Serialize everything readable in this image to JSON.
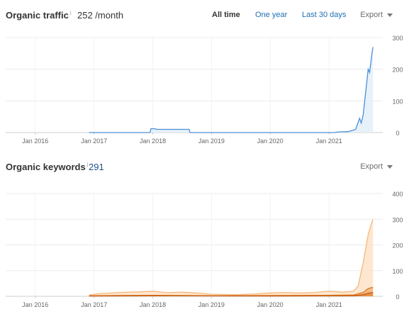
{
  "traffic": {
    "title": "Organic traffic",
    "info_mark": "i",
    "value": "252 /month",
    "ranges": [
      "All time",
      "One year",
      "Last 30 days"
    ],
    "active_range": "All time",
    "export_label": "Export",
    "chart_data": {
      "type": "area",
      "x_ticks": [
        "Jan 2016",
        "Jan 2017",
        "Jan 2018",
        "Jan 2019",
        "Jan 2020",
        "Jan 2021"
      ],
      "y_ticks": [
        0,
        100,
        200,
        300
      ],
      "ylim": [
        0,
        300
      ],
      "grid": true,
      "color": "#4a90d9",
      "fill": "#e3eef9",
      "series": [
        {
          "values": [
            [
              "2016-12-01",
              0
            ],
            [
              "2017-12-15",
              0
            ],
            [
              "2017-12-20",
              12
            ],
            [
              "2018-01-15",
              12
            ],
            [
              "2018-01-25",
              10
            ],
            [
              "2018-08-15",
              10
            ],
            [
              "2018-08-20",
              0
            ],
            [
              "2021-02-01",
              0
            ],
            [
              "2021-03-01",
              2
            ],
            [
              "2021-05-01",
              3
            ],
            [
              "2021-06-15",
              10
            ],
            [
              "2021-07-10",
              45
            ],
            [
              "2021-07-20",
              30
            ],
            [
              "2021-08-01",
              55
            ],
            [
              "2021-08-15",
              120
            ],
            [
              "2021-09-01",
              200
            ],
            [
              "2021-09-10",
              190
            ],
            [
              "2021-09-25",
              250
            ],
            [
              "2021-10-01",
              270
            ]
          ]
        }
      ]
    }
  },
  "keywords": {
    "title": "Organic keywords",
    "info_mark": "i",
    "value": "291",
    "export_label": "Export",
    "chart_data": {
      "type": "area",
      "x_ticks": [
        "Jan 2016",
        "Jan 2017",
        "Jan 2018",
        "Jan 2019",
        "Jan 2020",
        "Jan 2021"
      ],
      "y_ticks": [
        0,
        100,
        200,
        300,
        400
      ],
      "ylim": [
        0,
        400
      ],
      "grid": true,
      "series": [
        {
          "color": "#f5b77a",
          "fill": "#fde3c8",
          "values": [
            [
              "2016-12-01",
              5
            ],
            [
              "2017-02-01",
              10
            ],
            [
              "2017-06-01",
              15
            ],
            [
              "2017-10-01",
              17
            ],
            [
              "2018-01-01",
              20
            ],
            [
              "2018-04-01",
              14
            ],
            [
              "2018-07-01",
              16
            ],
            [
              "2018-10-01",
              13
            ],
            [
              "2019-01-01",
              8
            ],
            [
              "2019-06-01",
              6
            ],
            [
              "2019-10-01",
              9
            ],
            [
              "2020-01-01",
              13
            ],
            [
              "2020-04-01",
              15
            ],
            [
              "2020-07-01",
              13
            ],
            [
              "2020-10-01",
              15
            ],
            [
              "2021-01-01",
              20
            ],
            [
              "2021-04-01",
              16
            ],
            [
              "2021-06-01",
              20
            ],
            [
              "2021-07-01",
              40
            ],
            [
              "2021-08-01",
              130
            ],
            [
              "2021-09-01",
              240
            ],
            [
              "2021-09-20",
              280
            ],
            [
              "2021-10-01",
              300
            ]
          ]
        },
        {
          "color": "#e07a1f",
          "fill": "#f3b27a",
          "values": [
            [
              "2016-12-01",
              2
            ],
            [
              "2017-06-01",
              3
            ],
            [
              "2018-01-01",
              4
            ],
            [
              "2019-01-01",
              2
            ],
            [
              "2020-01-01",
              3
            ],
            [
              "2021-01-01",
              4
            ],
            [
              "2021-06-01",
              5
            ],
            [
              "2021-08-01",
              15
            ],
            [
              "2021-09-01",
              30
            ],
            [
              "2021-10-01",
              35
            ]
          ]
        },
        {
          "color": "#c85a10",
          "fill": "#e08a40",
          "values": [
            [
              "2016-12-01",
              1
            ],
            [
              "2018-01-01",
              2
            ],
            [
              "2020-01-01",
              1
            ],
            [
              "2021-06-01",
              2
            ],
            [
              "2021-08-01",
              6
            ],
            [
              "2021-09-01",
              12
            ],
            [
              "2021-10-01",
              15
            ]
          ]
        }
      ]
    }
  }
}
